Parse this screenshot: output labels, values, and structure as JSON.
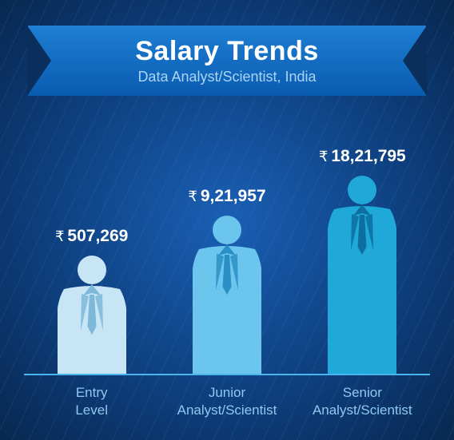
{
  "header": {
    "title": "Salary Trends",
    "subtitle": "Data Analyst/Scientist, India",
    "title_color": "#ffffff",
    "subtitle_color": "#a8d4f5",
    "banner_gradient_top": "#1e7fd4",
    "banner_gradient_bottom": "#0a5bb0",
    "title_fontsize": 34,
    "subtitle_fontsize": 18
  },
  "background": {
    "gradient_center": "#1a5fb4",
    "gradient_mid": "#0d3d7a",
    "gradient_edge": "#082850",
    "line_color": "#4a90d9",
    "line_opacity": 0.15
  },
  "chart": {
    "type": "pictogram-bar",
    "currency_symbol": "₹",
    "baseline_color": "#4bb4ed",
    "label_color": "#8fc9f0",
    "salary_text_color": "#ffffff",
    "label_fontsize": 17,
    "salary_fontsize": 21,
    "items": [
      {
        "label_line1": "Entry",
        "label_line2": "Level",
        "salary": "507,269",
        "person_height": 150,
        "fill_color": "#c7e5f5",
        "detail_color": "#7db8d8"
      },
      {
        "label_line1": "Junior",
        "label_line2": "Analyst/Scientist",
        "salary": "9,21,957",
        "person_height": 200,
        "fill_color": "#6bc5ed",
        "detail_color": "#2a8fc4"
      },
      {
        "label_line1": "Senior",
        "label_line2": "Analyst/Scientist",
        "salary": "18,21,795",
        "person_height": 250,
        "fill_color": "#1fa8d8",
        "detail_color": "#0d6fa0"
      }
    ]
  }
}
